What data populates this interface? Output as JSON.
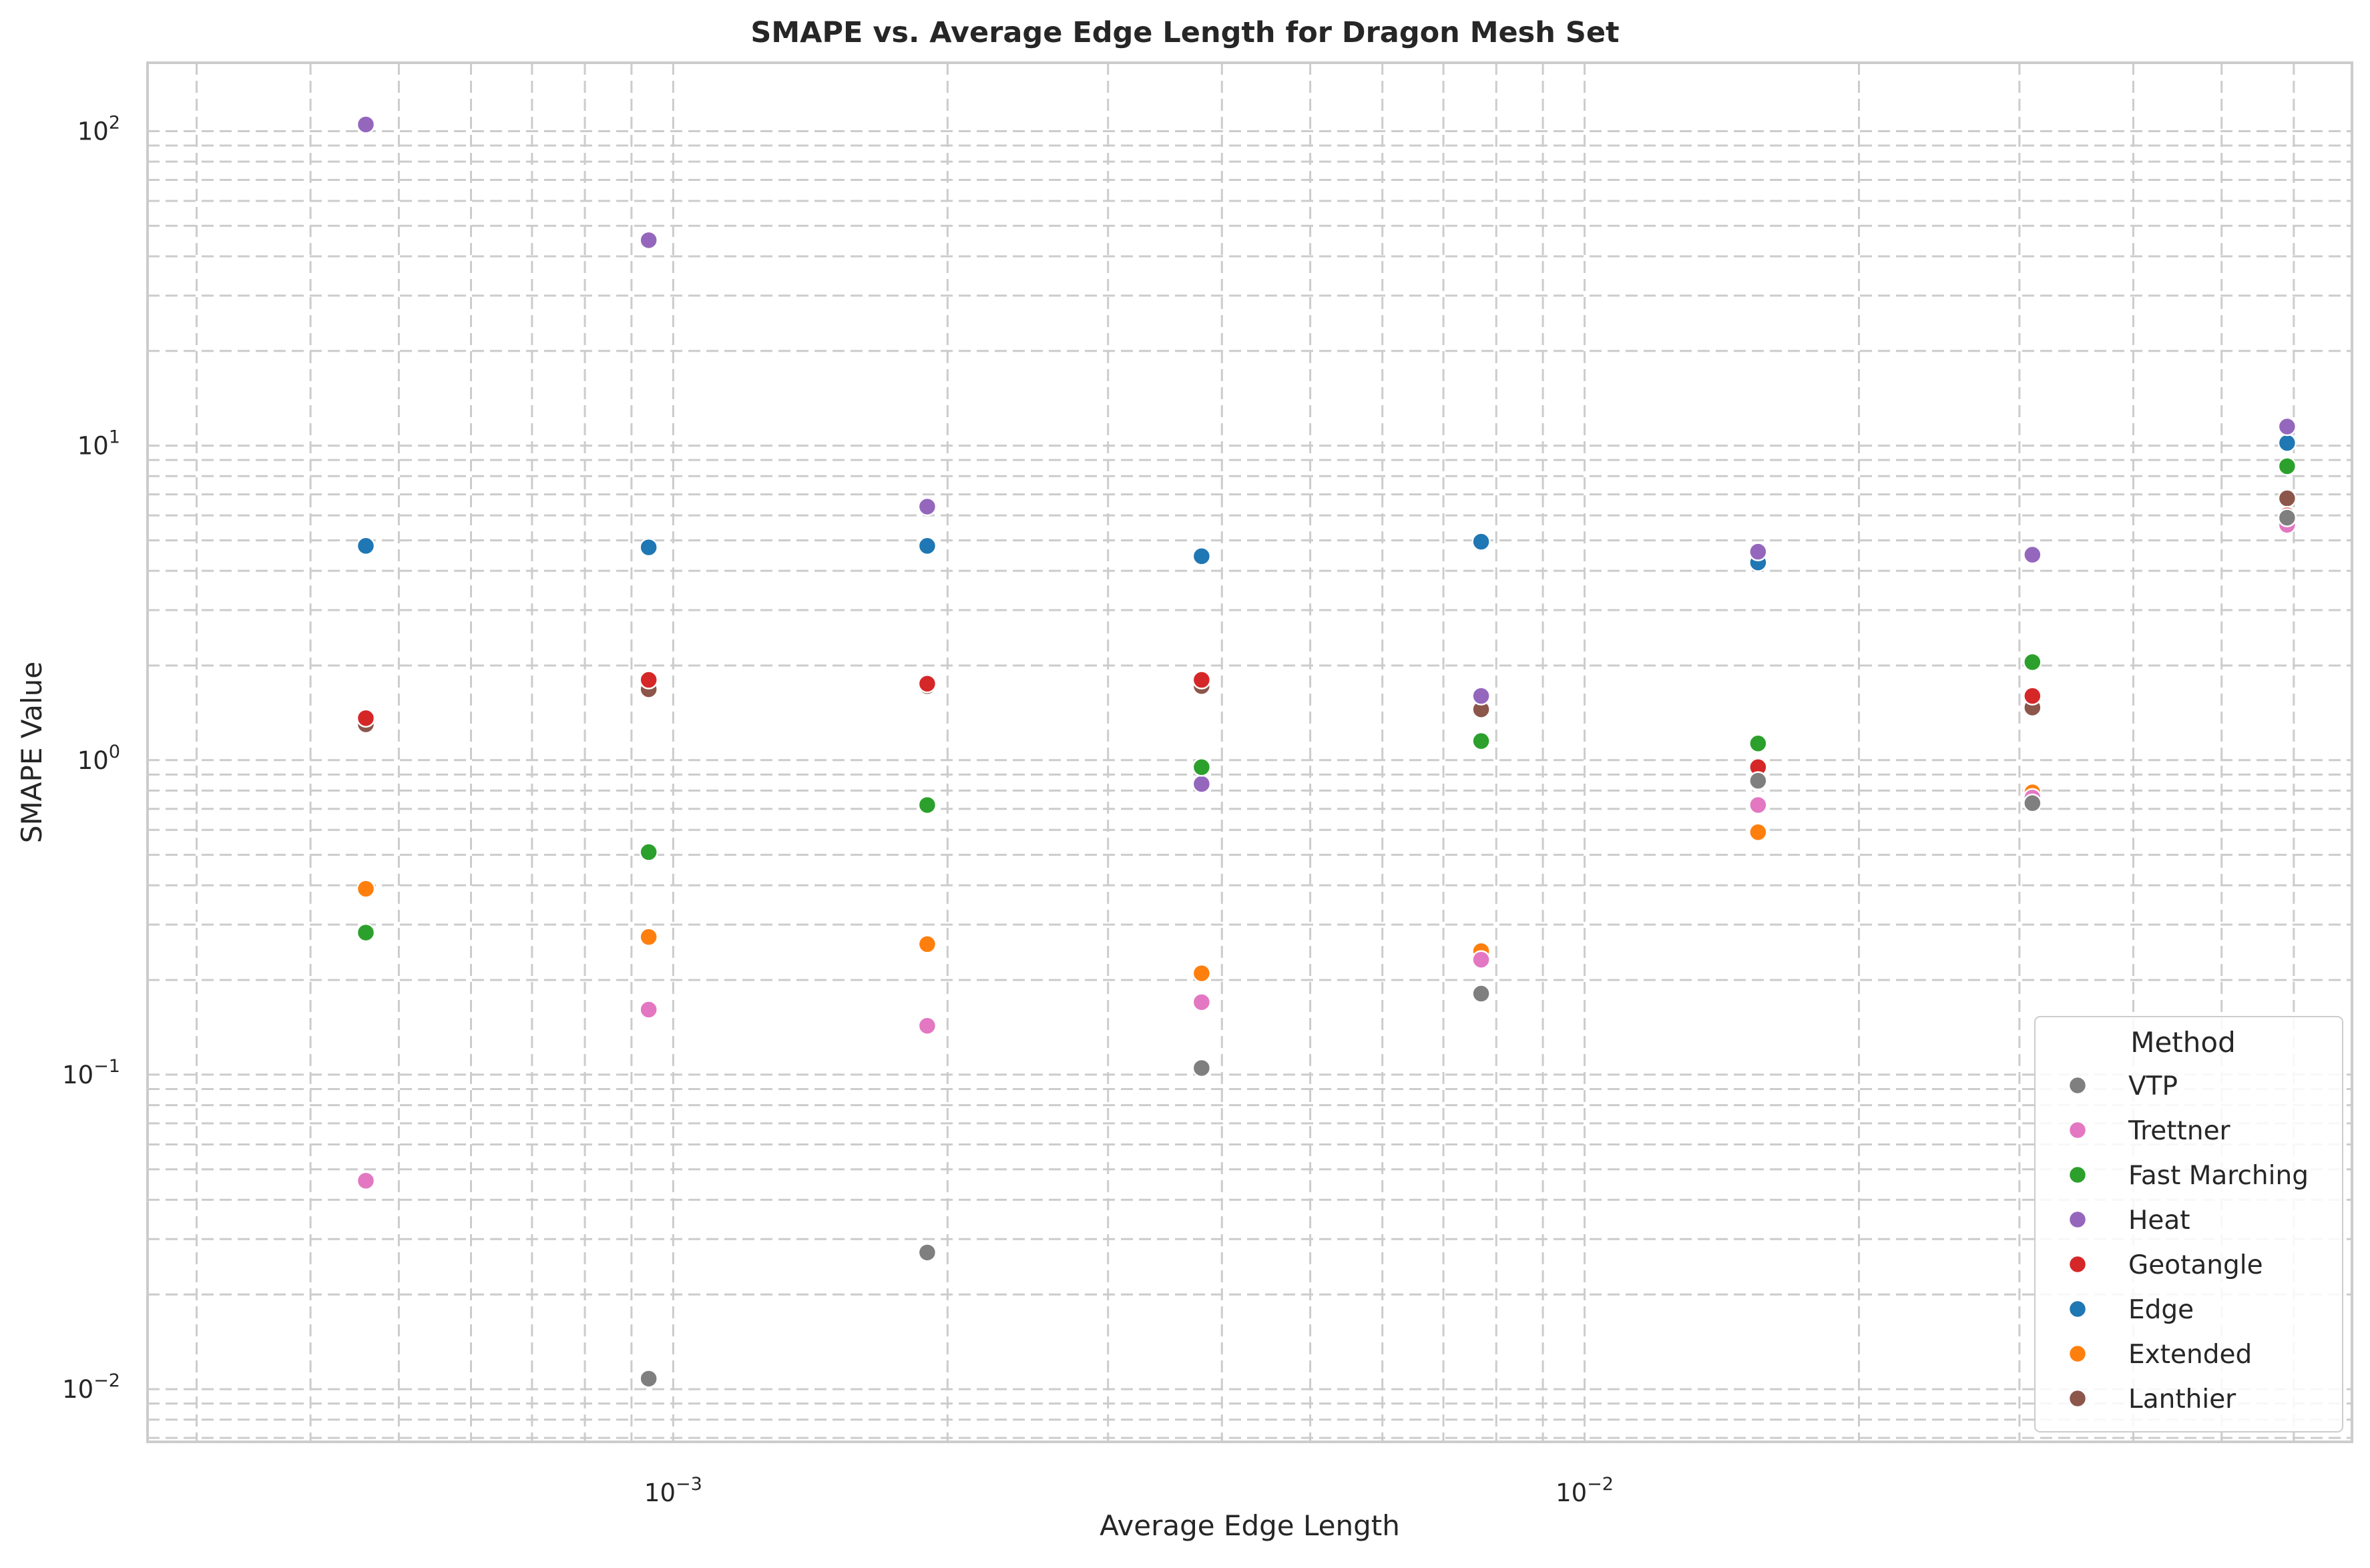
{
  "chart_data": {
    "type": "scatter",
    "title": "SMAPE vs. Average Edge Length for Dragon Mesh Set",
    "xlabel": "Average Edge Length",
    "ylabel": "SMAPE Value",
    "xscale": "log",
    "yscale": "log",
    "xlim": [
      0.000265,
      0.0695
    ],
    "ylim": [
      0.0068,
      165
    ],
    "grid": true,
    "legend_title": "Method",
    "legend_placement": "lower right",
    "x": [
      0.00046,
      0.00094,
      0.0019,
      0.0038,
      0.0077,
      0.0155,
      0.031,
      0.059
    ],
    "series": [
      {
        "name": "VTP",
        "color": "#7f7f7f",
        "values": [
          null,
          0.0108,
          0.0272,
          0.105,
          0.181,
          0.86,
          0.73,
          5.9
        ]
      },
      {
        "name": "Trettner",
        "color": "#e377c2",
        "values": [
          0.046,
          0.161,
          0.143,
          0.17,
          0.232,
          0.72,
          0.76,
          5.6
        ]
      },
      {
        "name": "Fast Marching",
        "color": "#2ca02c",
        "values": [
          0.283,
          0.51,
          0.72,
          0.95,
          1.15,
          1.13,
          2.05,
          8.6
        ]
      },
      {
        "name": "Heat",
        "color": "#9467bd",
        "values": [
          105,
          45,
          6.4,
          0.84,
          1.6,
          4.6,
          4.5,
          11.5
        ]
      },
      {
        "name": "Geotangle",
        "color": "#d62728",
        "values": [
          1.36,
          1.8,
          1.75,
          1.8,
          1.62,
          0.95,
          1.6,
          6.0
        ]
      },
      {
        "name": "Edge",
        "color": "#1f77b4",
        "values": [
          4.8,
          4.75,
          4.8,
          4.45,
          4.95,
          4.25,
          4.55,
          10.2
        ]
      },
      {
        "name": "Extended",
        "color": "#ff7f0e",
        "values": [
          0.39,
          0.274,
          0.26,
          0.21,
          0.247,
          0.59,
          0.79,
          5.9
        ]
      },
      {
        "name": "Lanthier",
        "color": "#8c564b",
        "values": [
          1.3,
          1.68,
          1.72,
          1.72,
          1.45,
          0.85,
          1.47,
          6.8
        ]
      }
    ],
    "x_ticks": [
      {
        "value": 0.001,
        "base": "10",
        "exp": "−3"
      },
      {
        "value": 0.01,
        "base": "10",
        "exp": "−2"
      }
    ],
    "y_ticks": [
      {
        "value": 0.01,
        "base": "10",
        "exp": "−2"
      },
      {
        "value": 0.1,
        "base": "10",
        "exp": "−1"
      },
      {
        "value": 1,
        "base": "10",
        "exp": "0"
      },
      {
        "value": 10,
        "base": "10",
        "exp": "1"
      },
      {
        "value": 100,
        "base": "10",
        "exp": "2"
      }
    ]
  }
}
